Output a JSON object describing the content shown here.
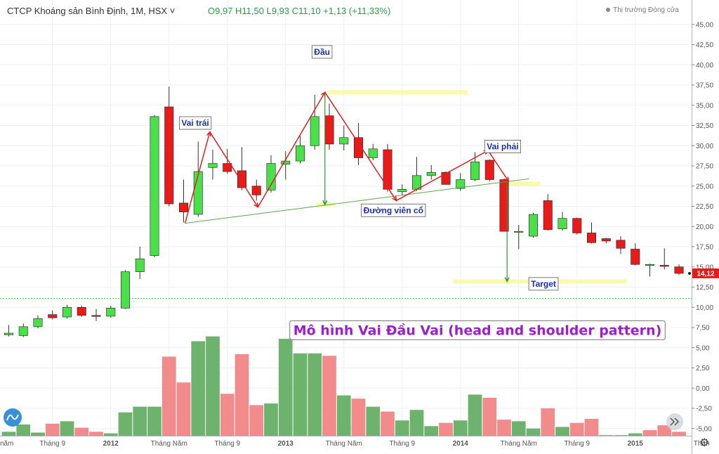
{
  "header": {
    "symbol": "CTCP Khoáng sản Bình Định, 1M, HSX",
    "chevron": "˅",
    "ohlc": "O9,97  H11,50  L9,93  C11,10  +1,13 (+11,33%)",
    "status": "Thị trường Đóng cửa"
  },
  "price_label": "14,12",
  "settings_icon": "gear-icon",
  "colors": {
    "up": "#4cdf4c",
    "down": "#e81a1a",
    "vol_up": "#6db36d",
    "vol_down": "#f28b8b",
    "neckline": "#5aa84a",
    "arrow": "#e02020",
    "drop": "#2a9d2a",
    "title": "#9b1fd1"
  },
  "chart_data": {
    "type": "candlestick",
    "ylim": [
      -6.5,
      46.5
    ],
    "yticks": [
      -5,
      -2.5,
      0,
      2.5,
      5,
      7.5,
      10,
      12.5,
      15,
      17.5,
      20,
      22.5,
      25,
      27.5,
      30,
      32.5,
      35,
      37.5,
      40,
      42.5,
      45
    ],
    "ytick_labels": [
      "-5,00",
      "-2,50",
      "0,00",
      "2,50",
      "5,00",
      "7,50",
      "10,00",
      "12,50",
      "15,00",
      "17,50",
      "20,00",
      "22,50",
      "25,00",
      "27,50",
      "30,00",
      "32,50",
      "35,00",
      "37,50",
      "40,00",
      "42,50",
      "45,00"
    ],
    "xticks": [
      {
        "i": 3,
        "label": "Tháng 9"
      },
      {
        "i": 7,
        "label": "2012"
      },
      {
        "i": 11,
        "label": "Tháng Năm"
      },
      {
        "i": 15,
        "label": "Tháng 9"
      },
      {
        "i": 19,
        "label": "2013"
      },
      {
        "i": 23,
        "label": "Tháng Năm"
      },
      {
        "i": 27,
        "label": "Tháng 9"
      },
      {
        "i": 31,
        "label": "2014"
      },
      {
        "i": 35,
        "label": "Tháng Năm"
      },
      {
        "i": 39,
        "label": "Tháng 9"
      },
      {
        "i": 43,
        "label": "2015"
      },
      {
        "i": 47,
        "label": "Thán"
      }
    ],
    "xtick_left": "năm",
    "candles": [
      {
        "o": 6.6,
        "h": 7.8,
        "l": 6.4,
        "c": 6.8
      },
      {
        "o": 6.5,
        "h": 8.0,
        "l": 6.3,
        "c": 7.6
      },
      {
        "o": 7.6,
        "h": 9.0,
        "l": 7.4,
        "c": 8.6
      },
      {
        "o": 9.1,
        "h": 9.6,
        "l": 8.5,
        "c": 8.7
      },
      {
        "o": 8.8,
        "h": 10.3,
        "l": 8.6,
        "c": 10.0
      },
      {
        "o": 10.0,
        "h": 10.2,
        "l": 8.8,
        "c": 9.0
      },
      {
        "o": 9.0,
        "h": 9.8,
        "l": 8.3,
        "c": 8.9
      },
      {
        "o": 8.9,
        "h": 10.2,
        "l": 8.7,
        "c": 9.9
      },
      {
        "o": 9.9,
        "h": 14.6,
        "l": 9.8,
        "c": 14.4
      },
      {
        "o": 14.4,
        "h": 17.5,
        "l": 13.5,
        "c": 16.0
      },
      {
        "o": 16.4,
        "h": 33.8,
        "l": 16.2,
        "c": 33.6
      },
      {
        "o": 34.8,
        "h": 37.3,
        "l": 22.5,
        "c": 22.8
      },
      {
        "o": 22.9,
        "h": 25.8,
        "l": 20.5,
        "c": 21.8
      },
      {
        "o": 21.5,
        "h": 30.5,
        "l": 21.2,
        "c": 26.8
      },
      {
        "o": 27.3,
        "h": 29.5,
        "l": 25.8,
        "c": 27.8
      },
      {
        "o": 27.8,
        "h": 29.6,
        "l": 26.5,
        "c": 26.8
      },
      {
        "o": 26.9,
        "h": 29.8,
        "l": 24.5,
        "c": 24.8
      },
      {
        "o": 25.0,
        "h": 25.8,
        "l": 23.2,
        "c": 23.9
      },
      {
        "o": 24.5,
        "h": 28.8,
        "l": 24.2,
        "c": 27.8
      },
      {
        "o": 27.7,
        "h": 29.3,
        "l": 25.8,
        "c": 28.1
      },
      {
        "o": 28.1,
        "h": 31.2,
        "l": 27.8,
        "c": 30.0
      },
      {
        "o": 30.0,
        "h": 36.3,
        "l": 29.5,
        "c": 33.6
      },
      {
        "o": 33.7,
        "h": 35.2,
        "l": 29.5,
        "c": 30.2
      },
      {
        "o": 30.2,
        "h": 32.5,
        "l": 29.4,
        "c": 31.0
      },
      {
        "o": 31.0,
        "h": 32.8,
        "l": 27.6,
        "c": 28.5
      },
      {
        "o": 28.5,
        "h": 30.2,
        "l": 28.2,
        "c": 29.6
      },
      {
        "o": 29.5,
        "h": 30.2,
        "l": 24.3,
        "c": 24.6
      },
      {
        "o": 24.3,
        "h": 25.2,
        "l": 23.9,
        "c": 24.6
      },
      {
        "o": 24.6,
        "h": 28.6,
        "l": 24.4,
        "c": 26.3
      },
      {
        "o": 26.3,
        "h": 27.6,
        "l": 25.8,
        "c": 26.7
      },
      {
        "o": 26.7,
        "h": 26.8,
        "l": 25.2,
        "c": 25.2
      },
      {
        "o": 24.7,
        "h": 26.6,
        "l": 24.4,
        "c": 25.8
      },
      {
        "o": 25.8,
        "h": 29.2,
        "l": 25.6,
        "c": 28.0
      },
      {
        "o": 28.2,
        "h": 28.3,
        "l": 25.6,
        "c": 25.8
      },
      {
        "o": 25.8,
        "h": 25.9,
        "l": 19.4,
        "c": 19.4
      },
      {
        "o": 19.3,
        "h": 20.2,
        "l": 17.2,
        "c": 19.4
      },
      {
        "o": 18.8,
        "h": 21.7,
        "l": 18.6,
        "c": 21.5
      },
      {
        "o": 23.2,
        "h": 24.0,
        "l": 19.5,
        "c": 19.6
      },
      {
        "o": 19.7,
        "h": 21.8,
        "l": 19.5,
        "c": 21.0
      },
      {
        "o": 21.0,
        "h": 21.1,
        "l": 19.0,
        "c": 19.2
      },
      {
        "o": 19.2,
        "h": 20.5,
        "l": 17.9,
        "c": 18.0
      },
      {
        "o": 18.5,
        "h": 18.6,
        "l": 17.9,
        "c": 18.2
      },
      {
        "o": 18.3,
        "h": 18.8,
        "l": 16.6,
        "c": 17.3
      },
      {
        "o": 17.2,
        "h": 17.9,
        "l": 15.2,
        "c": 15.3
      },
      {
        "o": 15.2,
        "h": 15.4,
        "l": 13.8,
        "c": 15.3
      },
      {
        "o": 15.2,
        "h": 17.3,
        "l": 14.7,
        "c": 15.1
      },
      {
        "o": 15.0,
        "h": 15.3,
        "l": 14.0,
        "c": 14.2
      }
    ],
    "volume": [
      {
        "v": -5.4,
        "up": true
      },
      {
        "v": -4.5,
        "up": true
      },
      {
        "v": -5.5,
        "up": true
      },
      {
        "v": -4.4,
        "up": false
      },
      {
        "v": -4.1,
        "up": true
      },
      {
        "v": -4.9,
        "up": false
      },
      {
        "v": -5.4,
        "up": false
      },
      {
        "v": -5.6,
        "up": true
      },
      {
        "v": -3.0,
        "up": true
      },
      {
        "v": -2.3,
        "up": true
      },
      {
        "v": -2.3,
        "up": true
      },
      {
        "v": 3.9,
        "up": false
      },
      {
        "v": 0.7,
        "up": false
      },
      {
        "v": 5.8,
        "up": true
      },
      {
        "v": 6.4,
        "up": true
      },
      {
        "v": -0.7,
        "up": false
      },
      {
        "v": 4.2,
        "up": false
      },
      {
        "v": -2.1,
        "up": false
      },
      {
        "v": -1.9,
        "up": true
      },
      {
        "v": 6.1,
        "up": true
      },
      {
        "v": 4.3,
        "up": true
      },
      {
        "v": 4.3,
        "up": true
      },
      {
        "v": 4.0,
        "up": false
      },
      {
        "v": -0.9,
        "up": true
      },
      {
        "v": -1.3,
        "up": false
      },
      {
        "v": -2.3,
        "up": true
      },
      {
        "v": -2.9,
        "up": false
      },
      {
        "v": -4.0,
        "up": true
      },
      {
        "v": -2.7,
        "up": true
      },
      {
        "v": -4.7,
        "up": true
      },
      {
        "v": -4.3,
        "up": false
      },
      {
        "v": -4.0,
        "up": true
      },
      {
        "v": -0.8,
        "up": true
      },
      {
        "v": -1.2,
        "up": false
      },
      {
        "v": -3.9,
        "up": false
      },
      {
        "v": -4.1,
        "up": true
      },
      {
        "v": -5.0,
        "up": true
      },
      {
        "v": -2.5,
        "up": false
      },
      {
        "v": -4.8,
        "up": true
      },
      {
        "v": -4.3,
        "up": false
      },
      {
        "v": -3.8,
        "up": false
      },
      {
        "v": -5.8,
        "up": false
      },
      {
        "v": -5.8,
        "up": false
      },
      {
        "v": -5.6,
        "up": true
      },
      {
        "v": -5.2,
        "up": false
      },
      {
        "v": -4.6,
        "up": false
      },
      {
        "v": -5.4,
        "up": false
      }
    ],
    "reference_line": 11.1,
    "pattern": {
      "title": "Mô hình Vai Đầu Vai (head and shoulder pattern)",
      "labels": [
        {
          "text": "Vai trái",
          "i": 12.8,
          "y": 32.8
        },
        {
          "text": "Đầu",
          "i": 21.5,
          "y": 41.6
        },
        {
          "text": "Vai phải",
          "i": 33.9,
          "y": 29.9
        },
        {
          "text": "Đường viên cổ",
          "i": 26.4,
          "y": 22.0
        },
        {
          "text": "Target",
          "i": 36.7,
          "y": 12.9
        }
      ],
      "zigzag": [
        {
          "i": 12.1,
          "y": 20.4
        },
        {
          "i": 13.8,
          "y": 31.7
        },
        {
          "i": 17.1,
          "y": 22.4
        },
        {
          "i": 21.7,
          "y": 36.6
        },
        {
          "i": 26.6,
          "y": 23.2
        },
        {
          "i": 32.9,
          "y": 29.4
        },
        {
          "i": 34.3,
          "y": 25.6
        }
      ],
      "neckline": [
        {
          "i": 12.1,
          "y": 20.4
        },
        {
          "i": 35.7,
          "y": 25.9
        }
      ],
      "head_drop": {
        "i": 21.7,
        "y1": 36.6,
        "y2": 22.7
      },
      "target_drop": {
        "i": 34.2,
        "y1": 25.6,
        "y2": 13.2
      },
      "highlights": [
        {
          "i1": 21.9,
          "i2": 31.5,
          "y": 36.6
        },
        {
          "i1": 33.8,
          "i2": 36.5,
          "y": 25.3
        },
        {
          "i1": 30.5,
          "i2": 42.4,
          "y": 13.2
        },
        {
          "i1": 21.1,
          "i2": 22.4,
          "y": 22.7
        }
      ]
    }
  }
}
